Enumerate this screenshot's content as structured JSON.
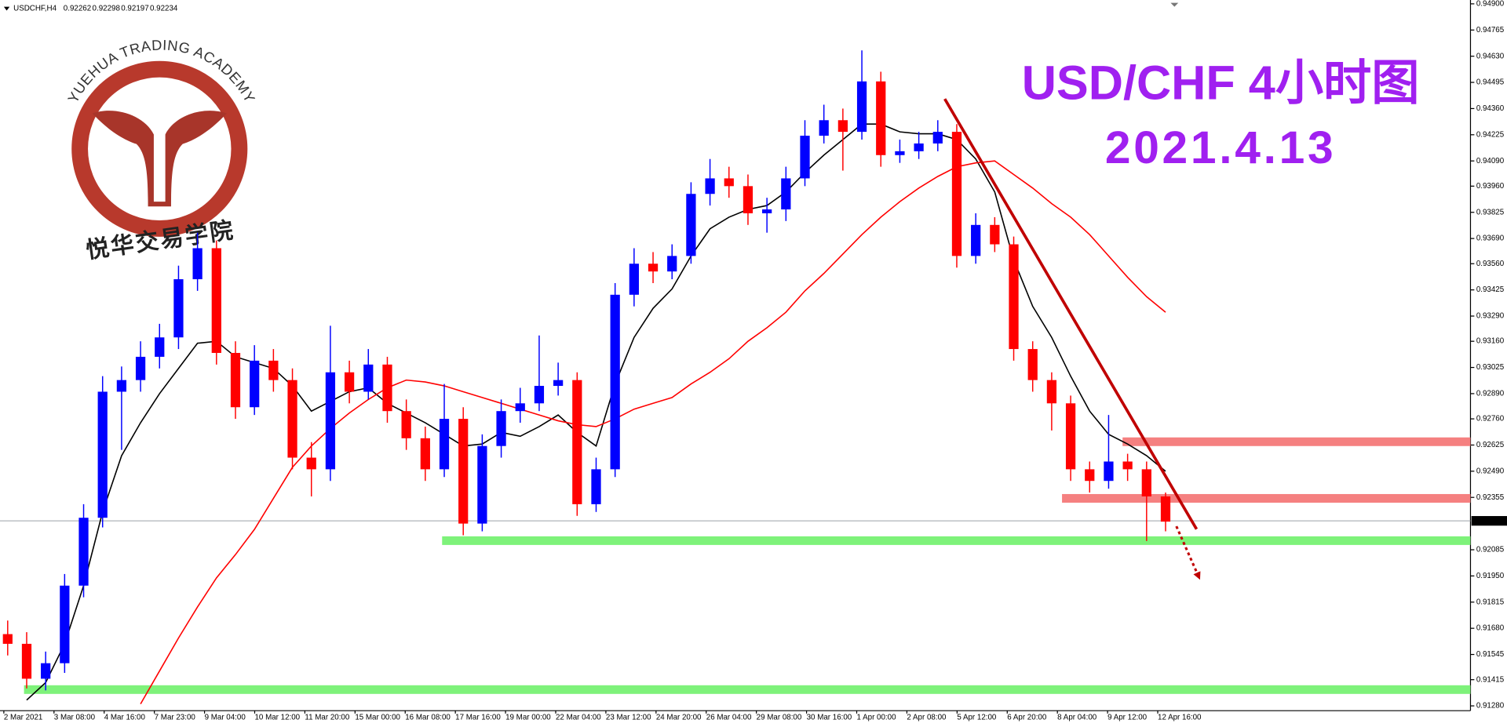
{
  "header": {
    "symbol": "USDCHF,H4",
    "ohlc": [
      0.92262,
      0.92298,
      0.92197,
      0.92234
    ]
  },
  "logo": {
    "text": "YUEHUA TRADING ACADEMY",
    "chinese": "悦华交易学院"
  },
  "chart_data": {
    "type": "candlestick",
    "title": "USD/CHF  4小时图",
    "subtitle": "2021.4.13",
    "up_color": "#0000ff",
    "down_color": "#ff0000",
    "open": [
      0.9165,
      0.916,
      0.9142,
      0.915,
      0.919,
      0.9225,
      0.929,
      0.9296,
      0.9308,
      0.9318,
      0.9348,
      0.9364,
      0.931,
      0.9282,
      0.9306,
      0.9296,
      0.9256,
      0.925,
      0.93,
      0.929,
      0.9304,
      0.928,
      0.9266,
      0.925,
      0.9276,
      0.9222,
      0.9262,
      0.928,
      0.9284,
      0.9293,
      0.9296,
      0.9232,
      0.925,
      0.934,
      0.9356,
      0.9352,
      0.936,
      0.9392,
      0.94,
      0.9396,
      0.9382,
      0.9384,
      0.94,
      0.9422,
      0.943,
      0.9424,
      0.945,
      0.9412,
      0.9414,
      0.9418,
      0.9424,
      0.936,
      0.9376,
      0.9366,
      0.9312,
      0.9296,
      0.9284,
      0.925,
      0.9244,
      0.9254,
      0.925,
      0.9236
    ],
    "high": [
      0.9172,
      0.9166,
      0.9156,
      0.9196,
      0.9232,
      0.9298,
      0.9303,
      0.9316,
      0.9325,
      0.9355,
      0.9372,
      0.9368,
      0.9316,
      0.9314,
      0.9312,
      0.9302,
      0.9264,
      0.9324,
      0.9306,
      0.9312,
      0.9308,
      0.9286,
      0.9272,
      0.9294,
      0.9282,
      0.9268,
      0.9286,
      0.9292,
      0.9319,
      0.9305,
      0.93,
      0.9256,
      0.9346,
      0.9364,
      0.9362,
      0.9366,
      0.9398,
      0.941,
      0.9406,
      0.9402,
      0.939,
      0.9406,
      0.943,
      0.9438,
      0.9436,
      0.9466,
      0.9455,
      0.942,
      0.9424,
      0.943,
      0.9428,
      0.9382,
      0.938,
      0.937,
      0.9316,
      0.93,
      0.9288,
      0.9254,
      0.9278,
      0.9258,
      0.9254,
      0.9238
    ],
    "low": [
      0.9154,
      0.9137,
      0.9136,
      0.9145,
      0.9184,
      0.922,
      0.926,
      0.929,
      0.9302,
      0.9312,
      0.9342,
      0.9304,
      0.9276,
      0.9278,
      0.929,
      0.925,
      0.9236,
      0.9244,
      0.9284,
      0.9286,
      0.9274,
      0.926,
      0.9244,
      0.9246,
      0.9216,
      0.9218,
      0.9256,
      0.9274,
      0.928,
      0.9288,
      0.9226,
      0.9228,
      0.9246,
      0.9334,
      0.9346,
      0.9348,
      0.9356,
      0.9386,
      0.939,
      0.9376,
      0.9372,
      0.9378,
      0.9396,
      0.9418,
      0.9404,
      0.942,
      0.9406,
      0.9408,
      0.941,
      0.9414,
      0.9354,
      0.9356,
      0.9362,
      0.9306,
      0.929,
      0.927,
      0.9244,
      0.9238,
      0.924,
      0.9244,
      0.9213,
      0.9218
    ],
    "close": [
      0.916,
      0.9142,
      0.915,
      0.919,
      0.9225,
      0.929,
      0.9296,
      0.9308,
      0.9318,
      0.9348,
      0.9364,
      0.931,
      0.9282,
      0.9306,
      0.9296,
      0.9256,
      0.925,
      0.93,
      0.929,
      0.9304,
      0.928,
      0.9266,
      0.925,
      0.9276,
      0.9222,
      0.9262,
      0.928,
      0.9284,
      0.9293,
      0.9296,
      0.9232,
      0.925,
      0.934,
      0.9356,
      0.9352,
      0.936,
      0.9392,
      0.94,
      0.9396,
      0.9382,
      0.9384,
      0.94,
      0.9422,
      0.943,
      0.9424,
      0.945,
      0.9412,
      0.9414,
      0.9418,
      0.9424,
      0.936,
      0.9376,
      0.9366,
      0.9312,
      0.9296,
      0.9284,
      0.925,
      0.9244,
      0.9254,
      0.925,
      0.9236,
      0.9223
    ],
    "moving_averages": [
      {
        "color": "#000000",
        "values": [
          null,
          0.9131,
          0.914,
          0.916,
          0.919,
          0.9228,
          0.9257,
          0.9274,
          0.9289,
          0.9302,
          0.9315,
          0.9316,
          0.9308,
          0.9305,
          0.9302,
          0.9293,
          0.928,
          0.9285,
          0.929,
          0.9292,
          0.9284,
          0.9279,
          0.9274,
          0.9268,
          0.9262,
          0.9263,
          0.9269,
          0.9267,
          0.9272,
          0.9278,
          0.9269,
          0.9262,
          0.9294,
          0.9318,
          0.9333,
          0.9343,
          0.936,
          0.9374,
          0.938,
          0.9384,
          0.9386,
          0.9393,
          0.9403,
          0.9412,
          0.942,
          0.9428,
          0.9428,
          0.9424,
          0.9423,
          0.9423,
          0.942,
          0.941,
          0.9393,
          0.9358,
          0.9334,
          0.9318,
          0.9298,
          0.928,
          0.9268,
          0.9263,
          0.9257,
          0.9249
        ]
      },
      {
        "color": "#ff0000",
        "values": [
          null,
          null,
          null,
          null,
          null,
          null,
          null,
          0.9129,
          0.9146,
          0.9163,
          0.9179,
          0.9194,
          0.9206,
          0.9219,
          0.9235,
          0.9251,
          0.9262,
          0.9271,
          0.9279,
          0.9286,
          0.9292,
          0.9296,
          0.9295,
          0.9293,
          0.929,
          0.9287,
          0.9284,
          0.9281,
          0.9278,
          0.9275,
          0.9273,
          0.9272,
          0.9276,
          0.9281,
          0.9284,
          0.9287,
          0.9294,
          0.93,
          0.9307,
          0.9316,
          0.9323,
          0.9331,
          0.9342,
          0.9351,
          0.9361,
          0.9371,
          0.938,
          0.9388,
          0.9395,
          0.9401,
          0.9406,
          0.9408,
          0.9409,
          0.9402,
          0.9395,
          0.9387,
          0.938,
          0.9371,
          0.936,
          0.9349,
          0.9339,
          0.9331
        ]
      }
    ],
    "levels": [
      {
        "value": 0.92132,
        "color": "#7ef27a"
      },
      {
        "value": 0.91364,
        "color": "#7ef27a"
      },
      {
        "value": 0.92642,
        "color": "#f58080"
      },
      {
        "value": 0.9235,
        "color": "#f58080"
      }
    ],
    "current_price": 0.92234,
    "ylim": [
      0.9128,
      0.949
    ],
    "yticks": [
      {
        "value": 0.949,
        "label": "0.94900"
      },
      {
        "value": 0.94765,
        "label": "0.94765"
      },
      {
        "value": 0.9463,
        "label": "0.94630"
      },
      {
        "value": 0.94495,
        "label": "0.94495"
      },
      {
        "value": 0.9436,
        "label": "0.94360"
      },
      {
        "value": 0.94225,
        "label": "0.94225"
      },
      {
        "value": 0.9409,
        "label": "0.94090"
      },
      {
        "value": 0.9396,
        "label": "0.93960"
      },
      {
        "value": 0.93825,
        "label": "0.93825"
      },
      {
        "value": 0.9369,
        "label": "0.93690"
      },
      {
        "value": 0.9356,
        "label": "0.93560"
      },
      {
        "value": 0.93425,
        "label": "0.93425"
      },
      {
        "value": 0.9329,
        "label": "0.93290"
      },
      {
        "value": 0.9316,
        "label": "0.93160"
      },
      {
        "value": 0.93025,
        "label": "0.93025"
      },
      {
        "value": 0.9289,
        "label": "0.92890"
      },
      {
        "value": 0.9276,
        "label": "0.92760"
      },
      {
        "value": 0.92625,
        "label": "0.92625"
      },
      {
        "value": 0.9249,
        "label": "0.92490"
      },
      {
        "value": 0.92355,
        "label": "0.92355"
      },
      {
        "value": 0.92085,
        "label": "0.92085"
      },
      {
        "value": 0.9195,
        "label": "0.91950"
      },
      {
        "value": 0.91815,
        "label": "0.91815"
      },
      {
        "value": 0.9168,
        "label": "0.91680"
      },
      {
        "value": 0.91545,
        "label": "0.91545"
      },
      {
        "value": 0.91415,
        "label": "0.91415"
      },
      {
        "value": 0.9128,
        "label": "0.91280"
      }
    ],
    "time_labels": [
      "2 Mar 2021",
      "3 Mar 08:00",
      "4 Mar 16:00",
      "7 Mar 23:00",
      "9 Mar 04:00",
      "10 Mar 12:00",
      "11 Mar 20:00",
      "15 Mar 00:00",
      "16 Mar 08:00",
      "17 Mar 16:00",
      "19 Mar 00:00",
      "22 Mar 04:00",
      "23 Mar 12:00",
      "24 Mar 20:00",
      "26 Mar 04:00",
      "29 Mar 08:00",
      "30 Mar 16:00",
      "1 Apr 00:00",
      "2 Apr 08:00",
      "5 Apr 12:00",
      "6 Apr 20:00",
      "8 Apr 04:00",
      "9 Apr 12:00",
      "12 Apr 16:00"
    ]
  }
}
